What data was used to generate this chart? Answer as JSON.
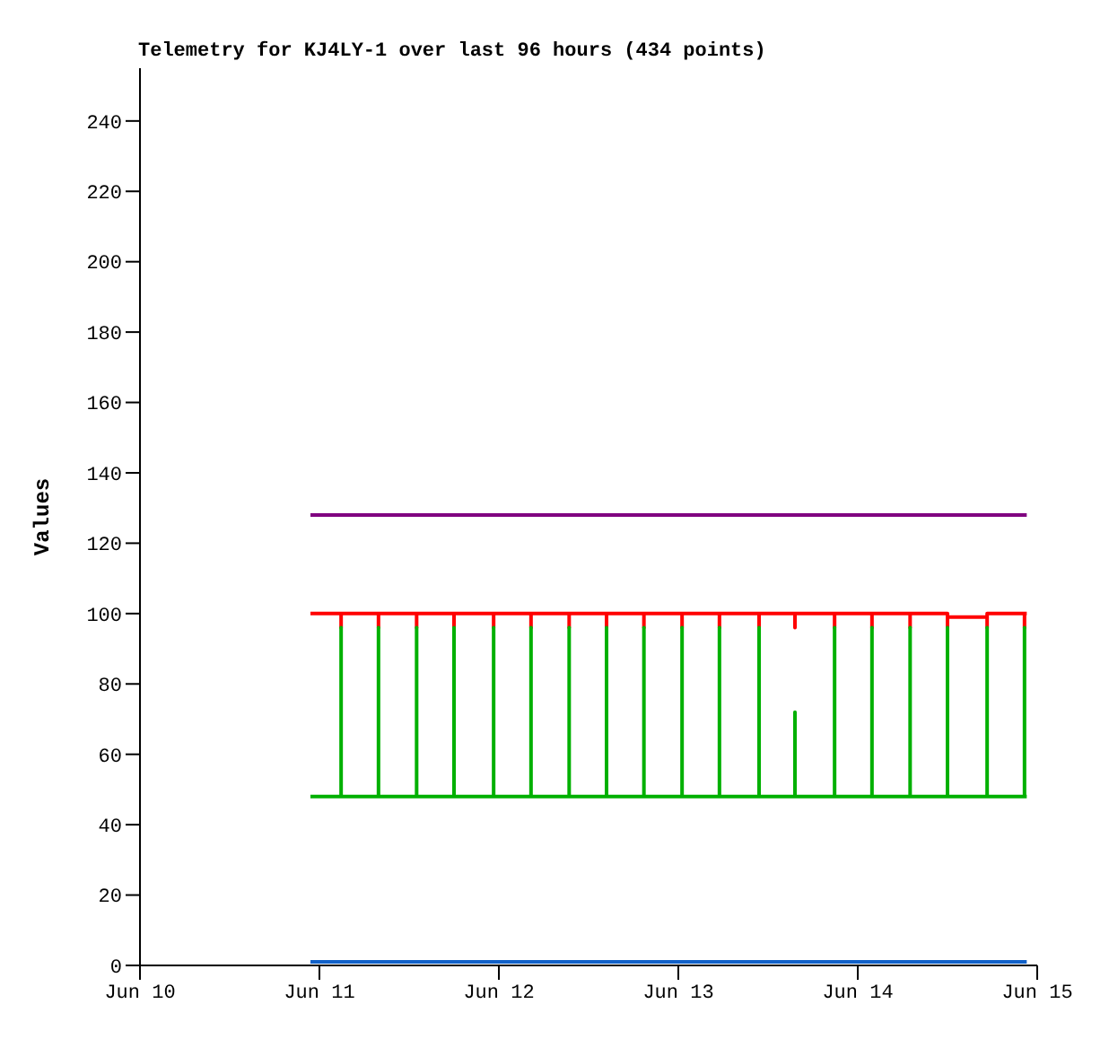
{
  "chart_data": {
    "type": "line",
    "title": "Telemetry for KJ4LY-1 over last 96 hours (434 points)",
    "ylabel": "Values",
    "xlim": [
      "--06-10",
      "--06-15"
    ],
    "xticks": [
      {
        "value": "--06-10",
        "label": "Jun 10"
      },
      {
        "value": "--06-11",
        "label": "Jun 11"
      },
      {
        "value": "--06-12",
        "label": "Jun 12"
      },
      {
        "value": "--06-13",
        "label": "Jun 13"
      },
      {
        "value": "--06-14",
        "label": "Jun 14"
      },
      {
        "value": "--06-15",
        "label": "Jun 15"
      }
    ],
    "ylim": [
      0,
      255
    ],
    "yticks": [
      0,
      20,
      40,
      60,
      80,
      100,
      120,
      140,
      160,
      180,
      200,
      220,
      240
    ],
    "grid": false,
    "series": [
      {
        "color": "#800080",
        "x": [
          "--06-10T22:48",
          "--06-14T22:36"
        ],
        "values": [
          128,
          128
        ]
      },
      {
        "color": "#ff0000",
        "x": [
          "--06-10T22:48",
          "--06-11T02:54",
          "--06-11T02:54",
          "--06-11T02:54",
          "--06-11T07:54",
          "--06-11T07:54",
          "--06-11T07:54",
          "--06-11T13:00",
          "--06-11T13:00",
          "--06-11T13:00",
          "--06-11T18:00",
          "--06-11T18:00",
          "--06-11T18:00",
          "--06-11T23:18",
          "--06-11T23:18",
          "--06-11T23:18",
          "--06-12T04:18",
          "--06-12T04:18",
          "--06-12T04:18",
          "--06-12T09:24",
          "--06-12T09:24",
          "--06-12T09:24",
          "--06-12T14:24",
          "--06-12T14:24",
          "--06-12T14:24",
          "--06-12T19:24",
          "--06-12T19:24",
          "--06-12T19:24",
          "--06-13T00:30",
          "--06-13T00:30",
          "--06-13T00:30",
          "--06-13T05:30",
          "--06-13T05:30",
          "--06-13T05:30",
          "--06-13T10:48",
          "--06-13T10:48",
          "--06-13T10:48",
          "--06-13T15:36",
          "--06-13T15:36",
          "--06-13T15:36",
          "--06-13T20:54",
          "--06-13T20:54",
          "--06-13T20:54",
          "--06-14T01:54",
          "--06-14T01:54",
          "--06-14T01:54",
          "--06-14T07:00",
          "--06-14T07:00",
          "--06-14T07:00",
          "--06-14T12:00",
          "--06-14T12:00",
          "--06-14T12:00",
          "--06-14T17:18",
          "--06-14T17:18",
          "--06-14T17:18",
          "--06-14T22:18",
          "--06-14T22:18",
          "--06-14T22:18",
          "--06-14T22:36"
        ],
        "values": [
          100,
          100,
          96,
          100,
          100,
          96,
          100,
          100,
          96,
          100,
          100,
          96,
          100,
          100,
          96,
          100,
          100,
          96,
          100,
          100,
          96,
          100,
          100,
          96,
          100,
          100,
          96,
          100,
          100,
          96,
          100,
          100,
          96,
          100,
          100,
          96,
          100,
          100,
          96,
          100,
          100,
          96,
          100,
          100,
          96,
          100,
          100,
          96,
          100,
          100,
          96,
          99,
          99,
          96,
          100,
          100,
          96,
          100,
          100
        ]
      },
      {
        "color": "#00b000",
        "x": [
          "--06-10T22:48",
          "--06-11T02:54",
          "--06-11T02:54",
          "--06-11T02:54",
          "--06-11T07:54",
          "--06-11T07:54",
          "--06-11T07:54",
          "--06-11T13:00",
          "--06-11T13:00",
          "--06-11T13:00",
          "--06-11T18:00",
          "--06-11T18:00",
          "--06-11T18:00",
          "--06-11T23:18",
          "--06-11T23:18",
          "--06-11T23:18",
          "--06-12T04:18",
          "--06-12T04:18",
          "--06-12T04:18",
          "--06-12T09:24",
          "--06-12T09:24",
          "--06-12T09:24",
          "--06-12T14:24",
          "--06-12T14:24",
          "--06-12T14:24",
          "--06-12T19:24",
          "--06-12T19:24",
          "--06-12T19:24",
          "--06-13T00:30",
          "--06-13T00:30",
          "--06-13T00:30",
          "--06-13T05:30",
          "--06-13T05:30",
          "--06-13T05:30",
          "--06-13T10:48",
          "--06-13T10:48",
          "--06-13T10:48",
          "--06-13T15:36",
          "--06-13T15:36",
          "--06-13T15:36",
          "--06-13T20:54",
          "--06-13T20:54",
          "--06-13T20:54",
          "--06-14T01:54",
          "--06-14T01:54",
          "--06-14T01:54",
          "--06-14T07:00",
          "--06-14T07:00",
          "--06-14T07:00",
          "--06-14T12:00",
          "--06-14T12:00",
          "--06-14T12:00",
          "--06-14T17:18",
          "--06-14T17:18",
          "--06-14T17:18",
          "--06-14T22:18",
          "--06-14T22:18",
          "--06-14T22:18",
          "--06-14T22:36"
        ],
        "values": [
          48,
          48,
          96,
          48,
          48,
          96,
          48,
          48,
          96,
          48,
          48,
          96,
          48,
          48,
          96,
          48,
          48,
          96,
          48,
          48,
          96,
          48,
          48,
          96,
          48,
          48,
          96,
          48,
          48,
          96,
          48,
          48,
          96,
          48,
          48,
          96,
          48,
          48,
          72,
          48,
          48,
          96,
          48,
          48,
          96,
          48,
          48,
          96,
          48,
          48,
          96,
          48,
          48,
          96,
          48,
          48,
          96,
          48,
          48
        ]
      },
      {
        "color": "#1060c8",
        "x": [
          "--06-10T22:48",
          "--06-14T22:36"
        ],
        "values": [
          1,
          1
        ]
      }
    ]
  }
}
